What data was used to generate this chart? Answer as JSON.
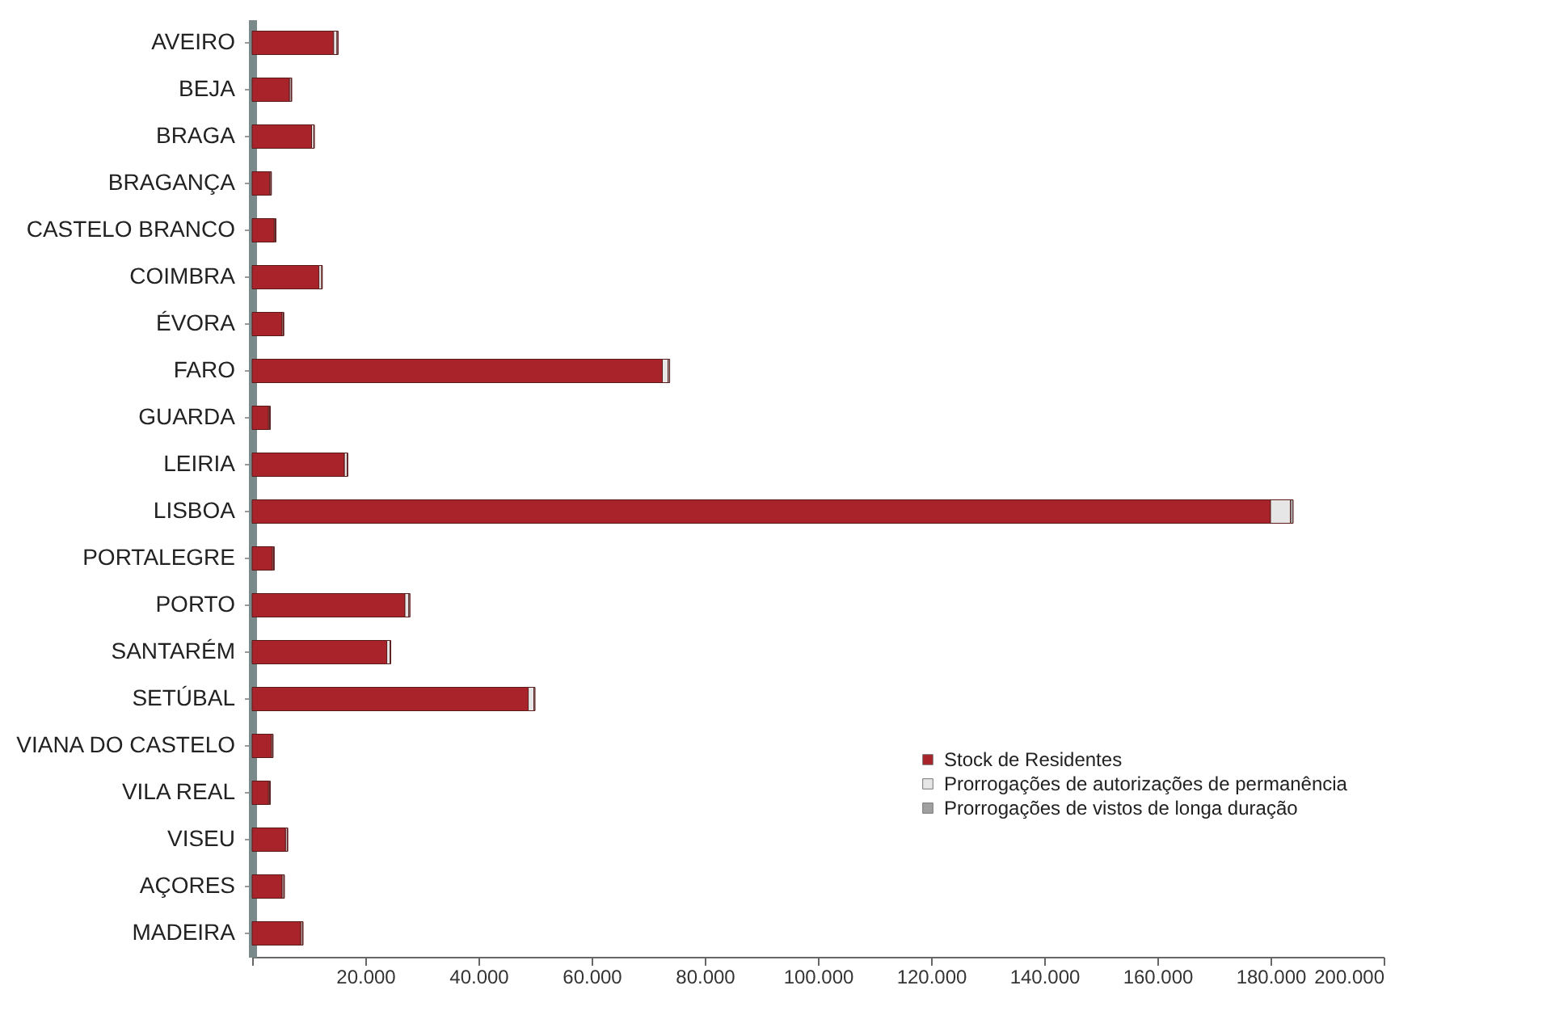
{
  "chart_data": {
    "type": "bar",
    "orientation": "horizontal",
    "stacked": true,
    "legend": "bottom right",
    "categories": [
      "AVEIRO",
      "BEJA",
      "BRAGA",
      "BRAGANÇA",
      "CASTELO BRANCO",
      "COIMBRA",
      "ÉVORA",
      "FARO",
      "GUARDA",
      "LEIRIA",
      "LISBOA",
      "PORTALEGRE",
      "PORTO",
      "SANTARÉM",
      "SETÚBAL",
      "VIANA DO CASTELO",
      "VILA REAL",
      "VISEU",
      "AÇORES",
      "MADEIRA"
    ],
    "series": [
      {
        "name": "Stock de Residentes",
        "color": "#a8232a",
        "values": [
          14400,
          6600,
          10500,
          3100,
          3900,
          11800,
          5300,
          72500,
          2900,
          16300,
          180000,
          3600,
          27000,
          23800,
          48800,
          3400,
          2900,
          5900,
          5300,
          8600
        ]
      },
      {
        "name": "Prorrogações de autorizações de permanência",
        "color": "#e6e6e6",
        "values": [
          600,
          300,
          400,
          200,
          200,
          500,
          200,
          1000,
          200,
          500,
          3500,
          200,
          700,
          600,
          1000,
          200,
          200,
          300,
          300,
          300
        ]
      },
      {
        "name": "Prorrogações de vistos de longa duração",
        "color": "#a0a0a0",
        "values": [
          200,
          100,
          100,
          100,
          100,
          100,
          100,
          300,
          100,
          100,
          500,
          100,
          200,
          100,
          200,
          100,
          100,
          100,
          100,
          100
        ]
      }
    ],
    "xlim": [
      0,
      200000
    ],
    "xticks": [
      {
        "value": 0,
        "label": null
      },
      {
        "value": 20000,
        "label": "20.000"
      },
      {
        "value": 40000,
        "label": "40.000"
      },
      {
        "value": 60000,
        "label": "60.000"
      },
      {
        "value": 80000,
        "label": "80.000"
      },
      {
        "value": 100000,
        "label": "100.000"
      },
      {
        "value": 120000,
        "label": "120.000"
      },
      {
        "value": 140000,
        "label": "140.000"
      },
      {
        "value": 160000,
        "label": "160.000"
      },
      {
        "value": 180000,
        "label": "180.000"
      },
      {
        "value": 200000,
        "label": "200.000"
      }
    ]
  }
}
